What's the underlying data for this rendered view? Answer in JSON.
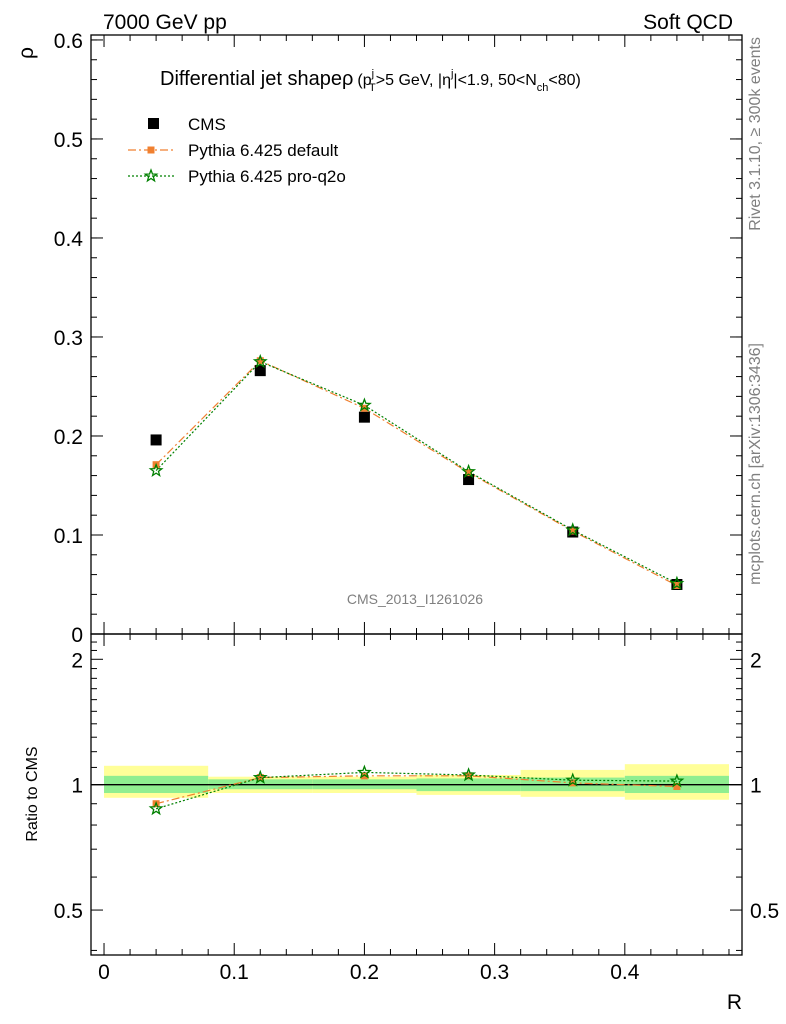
{
  "header": {
    "left": "7000 GeV pp",
    "right": "Soft QCD"
  },
  "side_labels": {
    "rivet": "Rivet 3.1.10, ≥ 300k events",
    "mcplots": "mcplots.cern.ch [arXiv:1306:3436]"
  },
  "watermark": "CMS_2013_I1261026",
  "chart_data": [
    {
      "type": "scatter",
      "title": {
        "main": "Differential jet shape",
        "rho": "ρ",
        "open": "(p",
        "pt_sup": "j",
        "pt_sub": "T",
        "cut1": ">5 GeV, |",
        "eta": "η",
        "eta_sup": "j",
        "cut2": "|<1.9, 50<N",
        "nch_sub": "ch",
        "cut3": "<80)"
      },
      "ylabel": "ρ",
      "xlabel": "R",
      "xlim": [
        -0.01,
        0.49
      ],
      "ylim": [
        0,
        0.605
      ],
      "yticks": [
        0,
        0.1,
        0.2,
        0.3,
        0.4,
        0.5,
        0.6
      ],
      "ytick_labels": [
        "0",
        "0.1",
        "0.2",
        "0.3",
        "0.4",
        "0.5",
        "0.6"
      ],
      "legend_position": "top-left",
      "series": [
        {
          "name": "CMS",
          "color": "#000000",
          "marker": "square",
          "x": [
            0.04,
            0.12,
            0.2,
            0.28,
            0.36,
            0.44
          ],
          "values": [
            0.196,
            0.266,
            0.219,
            0.156,
            0.103,
            0.05
          ]
        },
        {
          "name": "Pythia 6.425 default",
          "color": "#f08030",
          "marker": "square",
          "line": "dash-dot",
          "x": [
            0.04,
            0.12,
            0.2,
            0.28,
            0.36,
            0.44
          ],
          "values": [
            0.171,
            0.276,
            0.228,
            0.163,
            0.104,
            0.049
          ]
        },
        {
          "name": "Pythia 6.425 pro-q2o",
          "color": "#008000",
          "marker": "star",
          "line": "dotted",
          "x": [
            0.04,
            0.12,
            0.2,
            0.28,
            0.36,
            0.44
          ],
          "values": [
            0.165,
            0.275,
            0.231,
            0.164,
            0.105,
            0.051
          ]
        }
      ]
    },
    {
      "type": "scatter",
      "ylabel": "Ratio to CMS",
      "xlabel": "R",
      "scale": "log",
      "xlim": [
        -0.01,
        0.49
      ],
      "ylim": [
        0.39,
        2.3
      ],
      "xticks": [
        0,
        0.1,
        0.2,
        0.3,
        0.4
      ],
      "xtick_labels": [
        "0",
        "0.1",
        "0.2",
        "0.3",
        "0.4"
      ],
      "yticks": [
        0.5,
        1,
        2
      ],
      "ytick_labels": [
        "0.5",
        "1",
        "2"
      ],
      "bands": {
        "bin_edges": [
          0,
          0.08,
          0.16,
          0.24,
          0.32,
          0.4,
          0.48
        ],
        "inner": [
          [
            0.955,
            1.05
          ],
          [
            0.975,
            1.03
          ],
          [
            0.975,
            1.03
          ],
          [
            0.965,
            1.035
          ],
          [
            0.965,
            1.04
          ],
          [
            0.955,
            1.05
          ]
        ],
        "outer": [
          [
            0.93,
            1.11
          ],
          [
            0.955,
            1.045
          ],
          [
            0.955,
            1.045
          ],
          [
            0.945,
            1.055
          ],
          [
            0.935,
            1.085
          ],
          [
            0.92,
            1.12
          ]
        ],
        "inner_color": "#90ee90",
        "outer_color": "#ffff99"
      },
      "series": [
        {
          "name": "Pythia 6.425 default",
          "color": "#f08030",
          "x": [
            0.04,
            0.12,
            0.2,
            0.28,
            0.36,
            0.44
          ],
          "values": [
            0.9,
            1.04,
            1.05,
            1.05,
            1.01,
            0.99
          ]
        },
        {
          "name": "Pythia 6.425 pro-q2o",
          "color": "#008000",
          "x": [
            0.04,
            0.12,
            0.2,
            0.28,
            0.36,
            0.44
          ],
          "values": [
            0.875,
            1.04,
            1.07,
            1.055,
            1.025,
            1.02
          ]
        }
      ]
    }
  ]
}
